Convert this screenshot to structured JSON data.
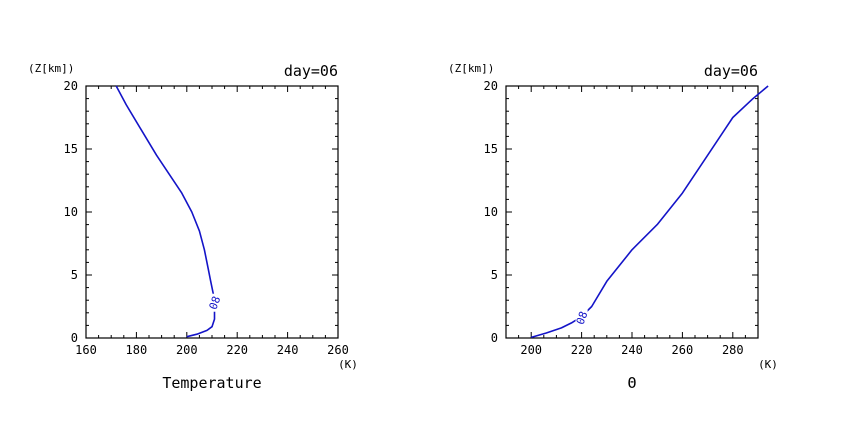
{
  "chart_data": [
    {
      "type": "line",
      "title": "day=06",
      "xlabel": "Temperature",
      "xunit": "(K)",
      "ylabel": "(Z[km])",
      "xlim": [
        160,
        260
      ],
      "ylim": [
        0,
        20
      ],
      "xticks": [
        160,
        180,
        200,
        220,
        240,
        260
      ],
      "yticks": [
        0,
        5,
        10,
        15,
        20
      ],
      "color": "#1414c8",
      "contour_label": "08",
      "contour_label_at": [
        211,
        2.8
      ],
      "series": [
        {
          "x": [
            200,
            204,
            208,
            210,
            211,
            211,
            210.5,
            209.5,
            208.5,
            207,
            205,
            202,
            198,
            193,
            188,
            182,
            176,
            172
          ],
          "y": [
            0.1,
            0.3,
            0.6,
            0.9,
            1.5,
            2.5,
            3.5,
            4.5,
            5.5,
            7,
            8.5,
            10,
            11.5,
            13,
            14.5,
            16.5,
            18.5,
            20
          ]
        }
      ]
    },
    {
      "type": "line",
      "title": "day=06",
      "xlabel": "Θ",
      "xunit": "(K)",
      "ylabel": "(Z[km])",
      "xlim": [
        190,
        290
      ],
      "ylim": [
        0,
        20
      ],
      "xticks": [
        200,
        220,
        240,
        260,
        280
      ],
      "yticks": [
        0,
        5,
        10,
        15,
        20
      ],
      "color": "#1414c8",
      "contour_label": "08",
      "contour_label_at": [
        220,
        1.6
      ],
      "series": [
        {
          "x": [
            200,
            206,
            212,
            216,
            220,
            224,
            230,
            240,
            250,
            260,
            270,
            280,
            288,
            294
          ],
          "y": [
            0.05,
            0.4,
            0.8,
            1.2,
            1.7,
            2.5,
            4.5,
            7,
            9,
            11.5,
            14.5,
            17.5,
            19,
            20
          ]
        }
      ]
    }
  ]
}
